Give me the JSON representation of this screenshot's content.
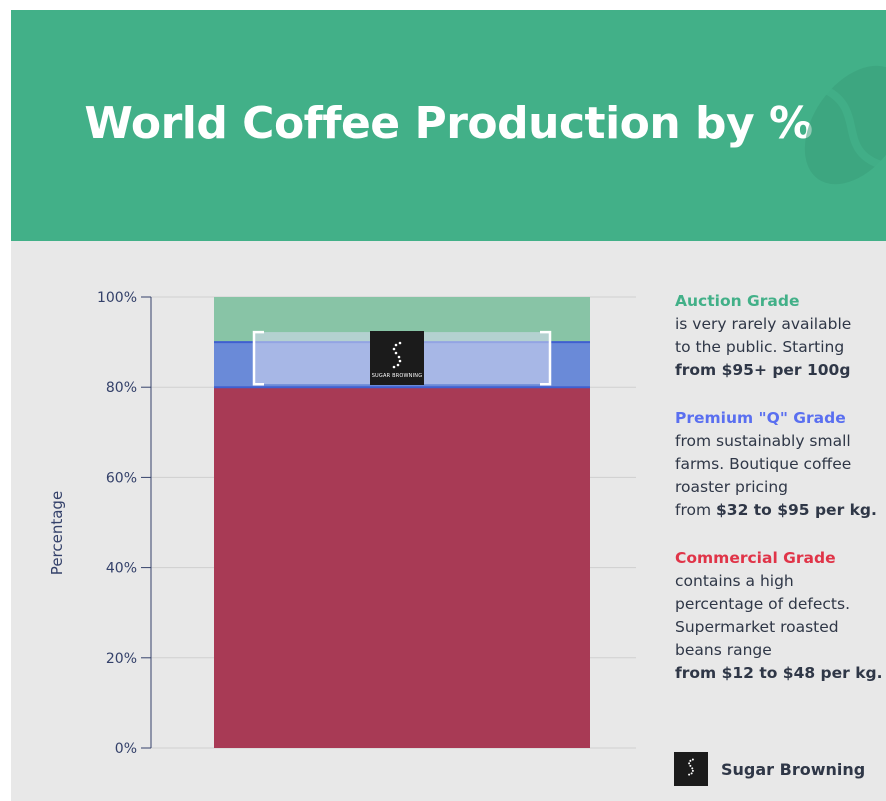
{
  "title": "World Coffee Production by %",
  "colors": {
    "header_bg": "#42b088",
    "panel_bg": "#e8e8e8",
    "auction": "#42b088",
    "premium": "#5a6ff0",
    "commercial": "#e03448",
    "text": "#2f3747"
  },
  "chart_data": {
    "type": "bar",
    "stacked": true,
    "categories": [
      ""
    ],
    "series": [
      {
        "name": "Commercial Grade",
        "values": [
          80
        ],
        "color": "#a83a55"
      },
      {
        "name": "Premium \"Q\" Grade",
        "values": [
          10
        ],
        "color": "#6a8ad8"
      },
      {
        "name": "Auction Grade",
        "values": [
          10
        ],
        "color": "#88c4a6"
      }
    ],
    "ylabel": "Percentage",
    "xlabel": "",
    "ylim": [
      0,
      100
    ],
    "yticks": [
      "0%",
      "20%",
      "40%",
      "60%",
      "80%",
      "100%"
    ],
    "grid": true,
    "legend_position": "right"
  },
  "legend": [
    {
      "title": "Auction Grade",
      "title_color": "#42b088",
      "desc_lines": [
        "is very rarely available",
        "to the public. Starting"
      ],
      "price_prefix": "",
      "price": "from $95+ per 100g"
    },
    {
      "title": "Premium \"Q\" Grade",
      "title_color": "#5a6ff0",
      "desc_lines": [
        "from sustainably small",
        "farms. Boutique coffee",
        "roaster pricing"
      ],
      "price_prefix": "from ",
      "price": "$32 to $95 per kg."
    },
    {
      "title": "Commercial Grade",
      "title_color": "#e03448",
      "desc_lines": [
        "contains a high",
        "percentage of defects.",
        "Supermarket roasted",
        "beans range"
      ],
      "price_prefix": "",
      "price": "from $12 to $48 per kg."
    }
  ],
  "brand": {
    "name": "Sugar Browning",
    "logo_text": "SUGAR BROWNING"
  }
}
